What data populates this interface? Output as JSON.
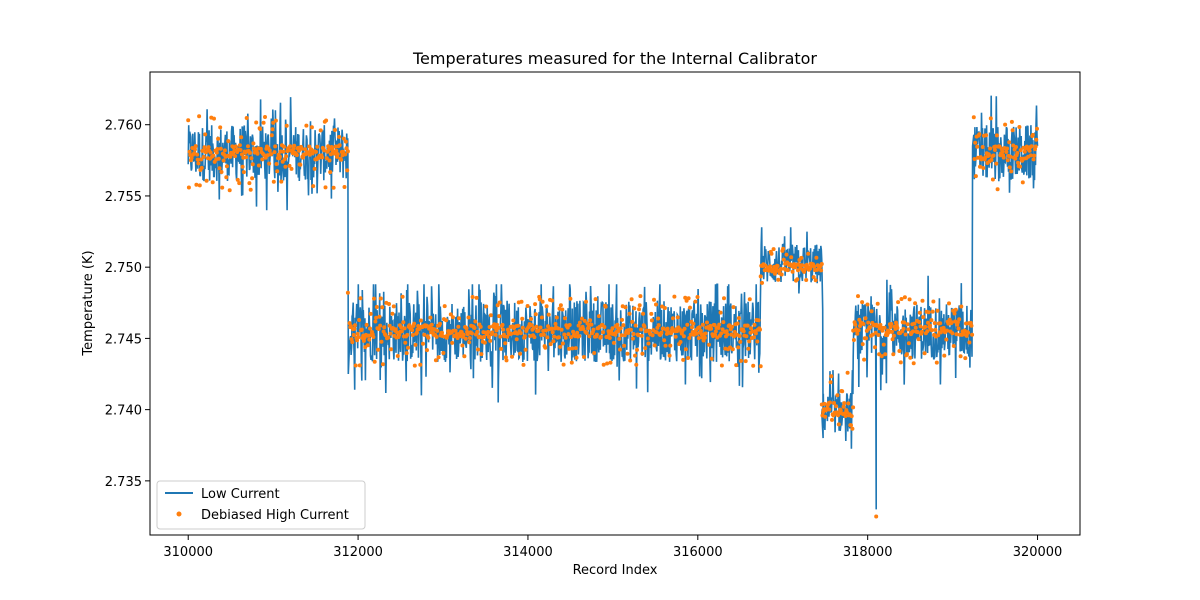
{
  "chart_data": {
    "type": "line",
    "title": "Temperatures measured for the Internal Calibrator",
    "xlabel": "Record Index",
    "ylabel": "Temperature (K)",
    "xlim": [
      309550,
      320500
    ],
    "ylim": [
      2.7312,
      2.7637
    ],
    "xticks": [
      310000,
      312000,
      314000,
      316000,
      318000,
      320000
    ],
    "yticks": [
      2.735,
      2.74,
      2.745,
      2.75,
      2.755,
      2.76
    ],
    "xtick_labels": [
      "310000",
      "312000",
      "314000",
      "316000",
      "318000",
      "320000"
    ],
    "ytick_labels": [
      "2.735",
      "2.740",
      "2.745",
      "2.750",
      "2.755",
      "2.760"
    ],
    "grid": false,
    "legend_position": "lower-left",
    "series": [
      {
        "name": "Low Current",
        "style": "line",
        "color": "#1f77b4",
        "segments": [
          {
            "start": 310000,
            "end": 311880,
            "base": 2.758,
            "amp": 0.0022,
            "min": 2.754,
            "max": 2.7621
          },
          {
            "start": 311900,
            "end": 316740,
            "base": 2.7455,
            "amp": 0.0024,
            "min": 2.7405,
            "max": 2.7488
          },
          {
            "start": 316740,
            "end": 317460,
            "base": 2.7502,
            "amp": 0.0016,
            "min": 2.7462,
            "max": 2.7528
          },
          {
            "start": 317460,
            "end": 317830,
            "base": 2.7398,
            "amp": 0.0016,
            "min": 2.7362,
            "max": 2.7452
          },
          {
            "start": 317830,
            "end": 319230,
            "base": 2.7455,
            "amp": 0.0022,
            "min": 2.7328,
            "max": 2.7502
          },
          {
            "start": 319250,
            "end": 320000,
            "base": 2.758,
            "amp": 0.0022,
            "min": 2.755,
            "max": 2.7622
          }
        ],
        "transitions": [
          {
            "x": 311880,
            "from": 2.758,
            "to": 2.7425
          },
          {
            "x": 317470,
            "from": 2.747,
            "to": 2.738
          },
          {
            "x": 319230,
            "from": 2.7455,
            "to": 2.7585
          }
        ],
        "spikes": [
          {
            "x": 318100,
            "y": 2.733
          },
          {
            "x": 313650,
            "y": 2.7405
          }
        ]
      },
      {
        "name": "Debiased High Current",
        "style": "points",
        "color": "#ff7f0e",
        "segments": [
          {
            "start": 310000,
            "end": 311880,
            "base": 2.758,
            "amp": 0.002
          },
          {
            "start": 311900,
            "end": 316740,
            "base": 2.7455,
            "amp": 0.0019
          },
          {
            "start": 316740,
            "end": 317460,
            "base": 2.75,
            "amp": 0.001
          },
          {
            "start": 317460,
            "end": 317830,
            "base": 2.74,
            "amp": 0.002
          },
          {
            "start": 317830,
            "end": 319230,
            "base": 2.7457,
            "amp": 0.0019
          },
          {
            "start": 319250,
            "end": 320000,
            "base": 2.758,
            "amp": 0.002
          }
        ],
        "spikes": [
          {
            "x": 318100,
            "y": 2.7325
          },
          {
            "x": 311880,
            "y": 2.7482
          }
        ]
      }
    ]
  }
}
